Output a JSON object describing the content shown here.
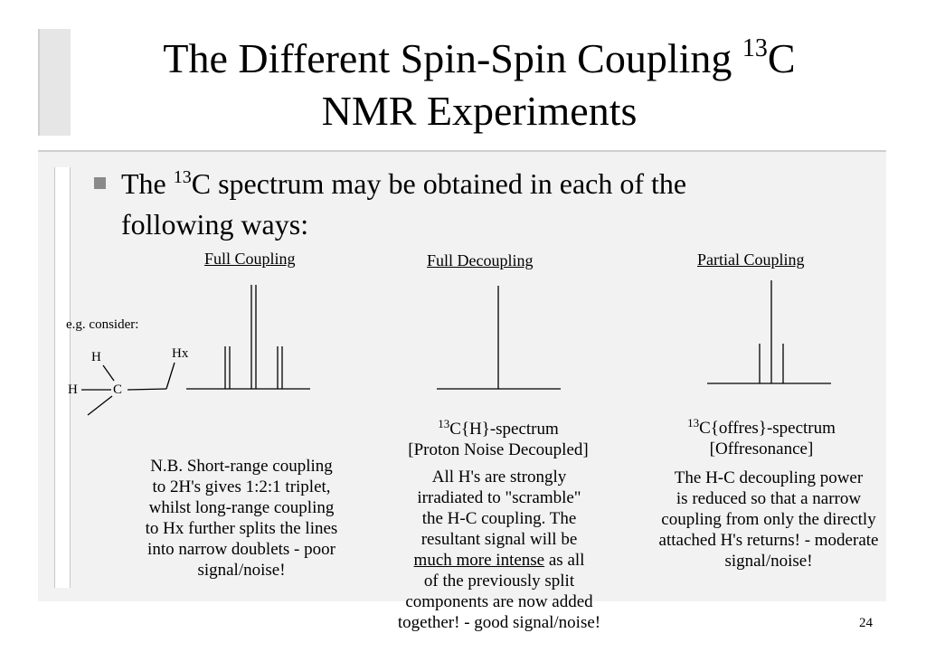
{
  "slide": {
    "title_part1": "The Different Spin-Spin Coupling ",
    "title_sup": "13",
    "title_part2": "C",
    "title_line2": "NMR Experiments",
    "page_number": "24"
  },
  "bullet": {
    "pre": "The ",
    "sup": "13",
    "post": "C spectrum may be obtained in each of the",
    "line2": "following ways:"
  },
  "molecule": {
    "caption": "e.g. consider:",
    "h_top": "H",
    "h_left": "H",
    "carbon": "C",
    "hx": "Hx"
  },
  "columns": {
    "full_coupling": {
      "header": "Full Coupling",
      "note_lines": [
        "N.B. Short-range coupling",
        "to 2H's gives 1:2:1 triplet,",
        "whilst long-range coupling",
        "to Hx further splits the lines",
        "into narrow doublets - poor",
        "signal/noise!"
      ]
    },
    "full_decoupling": {
      "header": "Full Decoupling",
      "label_sup": "13",
      "label_rest": "C{H}-spectrum",
      "label_line2": "[Proton Noise Decoupled]",
      "desc_lines": [
        "All H's are strongly",
        "irradiated to \"scramble\"",
        "the H-C coupling.  The",
        "resultant signal will be"
      ],
      "desc_underlined": "much more intense",
      "desc_after_underline": " as all",
      "desc_lines_end": [
        "of the previously split",
        "components are now added",
        "together! - good signal/noise!"
      ]
    },
    "partial_coupling": {
      "header": "Partial Coupling",
      "label_sup": "13",
      "label_rest": "C{offres}-spectrum",
      "label_line2": "[Offresonance]",
      "desc_lines": [
        "The H-C decoupling power",
        "is reduced so that a narrow",
        "coupling from only the directly",
        "attached H's returns! - moderate",
        "signal/noise!"
      ]
    }
  }
}
